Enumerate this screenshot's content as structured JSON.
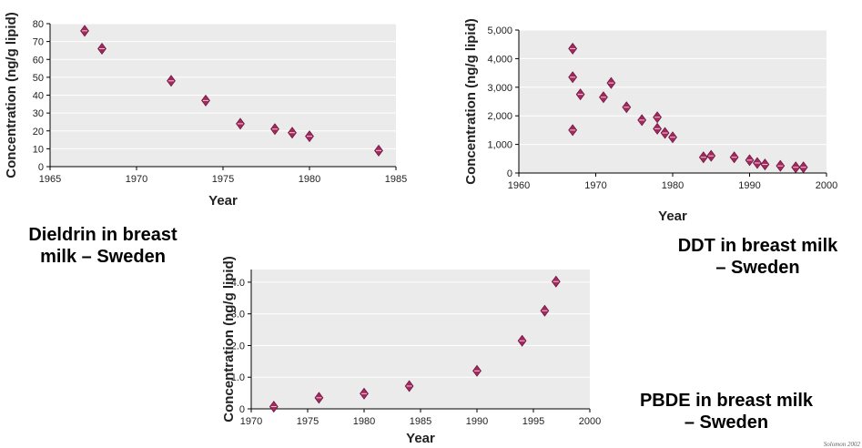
{
  "chart_data": [
    {
      "id": "dieldrin",
      "type": "scatter",
      "caption": "Dieldrin in breast milk – Sweden",
      "caption_lines": [
        "Dieldrin in breast",
        "milk – Sweden"
      ],
      "xlabel": "Year",
      "ylabel": "Concentration (ng/g lipid)",
      "xlim": [
        1965,
        1985
      ],
      "ylim": [
        0,
        80
      ],
      "x_ticks": [
        1965,
        1970,
        1975,
        1980,
        1985
      ],
      "y_ticks": [
        0,
        10,
        20,
        30,
        40,
        50,
        60,
        70,
        80
      ],
      "x_tick_labels": [
        "1965",
        "1970",
        "1975",
        "1980",
        "1985"
      ],
      "y_tick_labels": [
        "0",
        "10",
        "20",
        "30",
        "40",
        "50",
        "60",
        "70",
        "80"
      ],
      "grid": true,
      "marker_color": "#a3285e",
      "points": [
        {
          "x": 1967,
          "y": 76
        },
        {
          "x": 1968,
          "y": 66
        },
        {
          "x": 1972,
          "y": 48
        },
        {
          "x": 1974,
          "y": 37
        },
        {
          "x": 1976,
          "y": 24
        },
        {
          "x": 1978,
          "y": 21
        },
        {
          "x": 1979,
          "y": 19
        },
        {
          "x": 1980,
          "y": 17
        },
        {
          "x": 1984,
          "y": 9
        }
      ]
    },
    {
      "id": "ddt",
      "type": "scatter",
      "caption": "DDT in breast milk – Sweden",
      "caption_lines": [
        "DDT in breast milk",
        "– Sweden"
      ],
      "xlabel": "Year",
      "ylabel": "Concentration (ng/g lipid)",
      "xlim": [
        1960,
        2000
      ],
      "ylim": [
        0,
        5000
      ],
      "x_ticks": [
        1960,
        1970,
        1980,
        1990,
        2000
      ],
      "y_ticks": [
        0,
        1000,
        2000,
        3000,
        4000,
        5000
      ],
      "x_tick_labels": [
        "1960",
        "1970",
        "1980",
        "1990",
        "2000"
      ],
      "y_tick_labels": [
        "0",
        "1,000",
        "2,000",
        "3,000",
        "4,000",
        "5,000"
      ],
      "grid": true,
      "marker_color": "#a3285e",
      "points": [
        {
          "x": 1967,
          "y": 4350
        },
        {
          "x": 1967,
          "y": 3350
        },
        {
          "x": 1967,
          "y": 1500
        },
        {
          "x": 1968,
          "y": 2750
        },
        {
          "x": 1971,
          "y": 2650
        },
        {
          "x": 1972,
          "y": 3150
        },
        {
          "x": 1974,
          "y": 2300
        },
        {
          "x": 1976,
          "y": 1850
        },
        {
          "x": 1978,
          "y": 1950
        },
        {
          "x": 1978,
          "y": 1550
        },
        {
          "x": 1979,
          "y": 1400
        },
        {
          "x": 1980,
          "y": 1250
        },
        {
          "x": 1984,
          "y": 550
        },
        {
          "x": 1985,
          "y": 600
        },
        {
          "x": 1988,
          "y": 550
        },
        {
          "x": 1990,
          "y": 450
        },
        {
          "x": 1991,
          "y": 350
        },
        {
          "x": 1992,
          "y": 300
        },
        {
          "x": 1994,
          "y": 250
        },
        {
          "x": 1996,
          "y": 200
        },
        {
          "x": 1997,
          "y": 200
        }
      ]
    },
    {
      "id": "pbde",
      "type": "scatter",
      "caption": "PBDE in breast milk – Sweden",
      "caption_lines": [
        "PBDE in breast milk",
        "– Sweden"
      ],
      "xlabel": "Year",
      "ylabel": "Concentration (ng/g lipid)",
      "xlim": [
        1970,
        2000
      ],
      "ylim": [
        0,
        4.4
      ],
      "x_ticks": [
        1970,
        1975,
        1980,
        1985,
        1990,
        1995,
        2000
      ],
      "y_ticks": [
        0,
        1,
        2,
        3,
        4
      ],
      "x_tick_labels": [
        "1970",
        "1975",
        "1980",
        "1985",
        "1990",
        "1995",
        "2000"
      ],
      "y_tick_labels": [
        "0",
        "1.0",
        "2.0",
        "3.0",
        "4.0"
      ],
      "grid": true,
      "marker_color": "#a3285e",
      "points": [
        {
          "x": 1972,
          "y": 0.07
        },
        {
          "x": 1976,
          "y": 0.35
        },
        {
          "x": 1980,
          "y": 0.48
        },
        {
          "x": 1984,
          "y": 0.72
        },
        {
          "x": 1990,
          "y": 1.2
        },
        {
          "x": 1994,
          "y": 2.15
        },
        {
          "x": 1996,
          "y": 3.1
        },
        {
          "x": 1997,
          "y": 4.02
        }
      ]
    }
  ],
  "credit": "Solomon 2002"
}
